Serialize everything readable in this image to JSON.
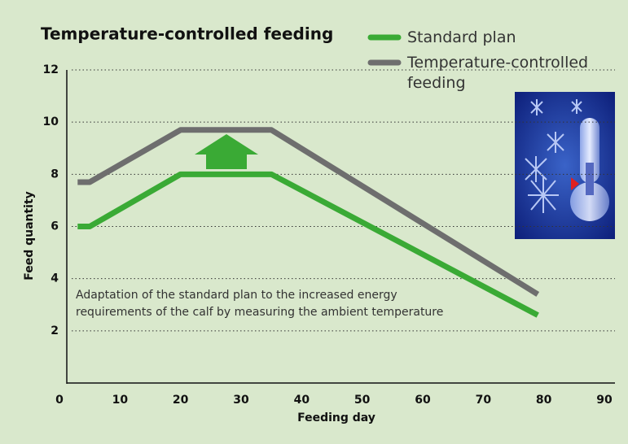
{
  "chart_data": {
    "type": "line",
    "title": "Temperature-controlled feeding",
    "x_label": "Feeding day",
    "y_label": "Feed quantity",
    "annotation": [
      "Adaptation of the standard plan to the increased energy",
      "requirements of the calf by measuring the ambient temperature"
    ],
    "xlim": [
      0,
      90
    ],
    "xticks": [
      0,
      10,
      20,
      30,
      40,
      50,
      60,
      70,
      80,
      90
    ],
    "ylim": [
      0,
      12
    ],
    "yticks": [
      2,
      4,
      6,
      8,
      10,
      12
    ],
    "grid": true,
    "legend": "top-right",
    "series": [
      {
        "name": "Standard plan",
        "color": "#3aaa35",
        "x": [
          3,
          5,
          20,
          35,
          79
        ],
        "values": [
          6,
          6,
          8,
          8,
          2.6
        ]
      },
      {
        "name": "Temperature-controlled feeding",
        "color": "#6e6e6e",
        "x": [
          3,
          5,
          20,
          35,
          79
        ],
        "values": [
          7.7,
          7.7,
          9.7,
          9.7,
          3.4
        ]
      }
    ]
  }
}
